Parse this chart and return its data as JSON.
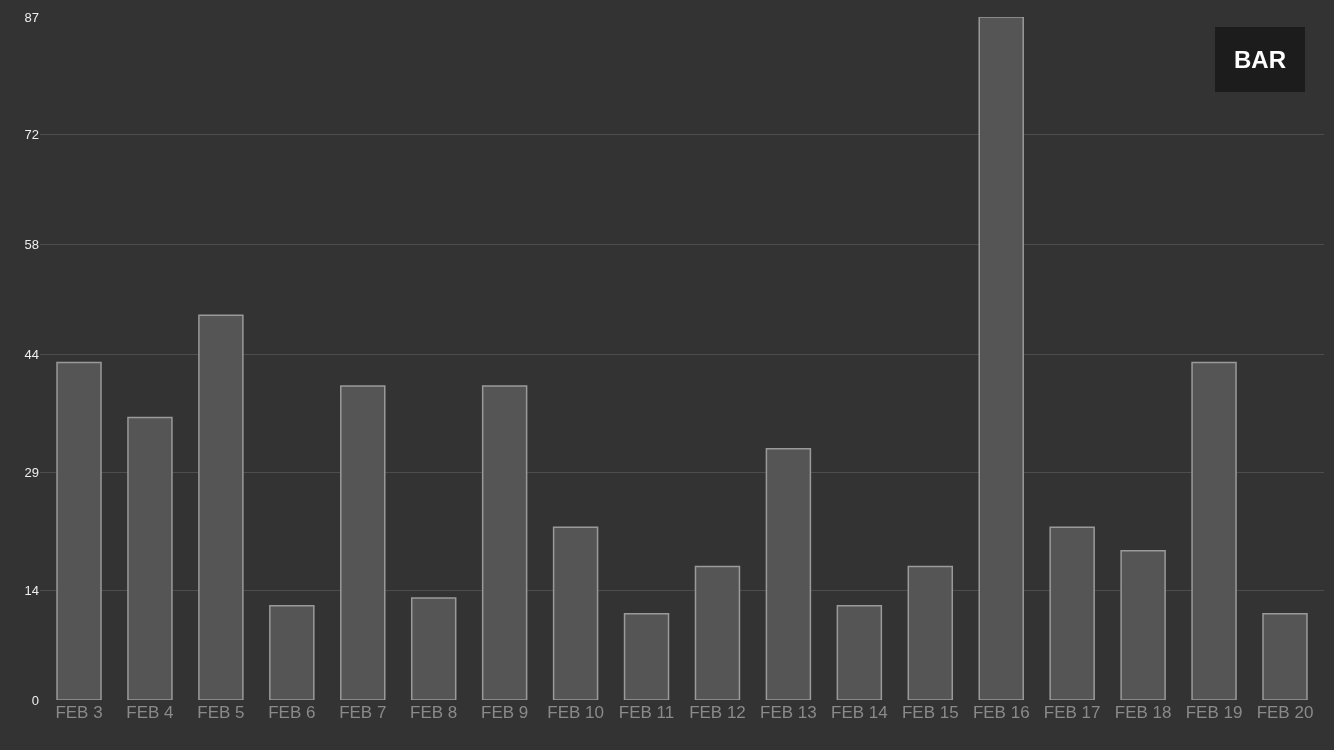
{
  "chart_data": {
    "type": "bar",
    "categories": [
      "FEB 3",
      "FEB 4",
      "FEB 5",
      "FEB 6",
      "FEB 7",
      "FEB 8",
      "FEB 9",
      "FEB 10",
      "FEB 11",
      "FEB 12",
      "FEB 13",
      "FEB 14",
      "FEB 15",
      "FEB 16",
      "FEB 17",
      "FEB 18",
      "FEB 19",
      "FEB 20"
    ],
    "values": [
      43,
      36,
      49,
      12,
      40,
      13,
      40,
      22,
      11,
      17,
      32,
      12,
      17,
      87,
      22,
      19,
      43,
      11
    ],
    "color": "#555555",
    "ylim": [
      0,
      87
    ],
    "yticks": [
      0,
      14,
      29,
      44,
      58,
      72,
      87
    ],
    "grid": "y",
    "annotations": [
      "BAR"
    ]
  }
}
